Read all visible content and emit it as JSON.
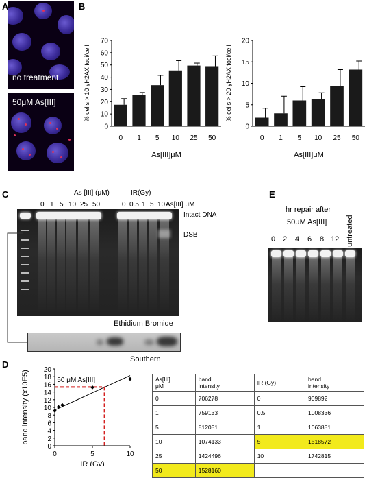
{
  "panels": {
    "A": "A",
    "B": "B",
    "C": "C",
    "D": "D",
    "E": "E"
  },
  "panelA": {
    "label_top": "no treatment",
    "label_bottom": "50μM As[III]"
  },
  "chart_data": [
    {
      "type": "bar",
      "categories": [
        "0",
        "1",
        "5",
        "10",
        "25",
        "50"
      ],
      "values": [
        17.5,
        25.5,
        33.5,
        45.5,
        49.5,
        49
      ],
      "errors": [
        5,
        2,
        8,
        8,
        2,
        8.5
      ],
      "xlabel": "As[III]μM",
      "ylabel": "% cells > 10 γH2AX foci/cell",
      "ylim": [
        0,
        70
      ],
      "yticks": [
        0,
        10,
        20,
        30,
        40,
        50,
        60,
        70
      ],
      "bar_color": "#1a1a1a",
      "grid": false
    },
    {
      "type": "bar",
      "categories": [
        "0",
        "1",
        "5",
        "10",
        "25",
        "50"
      ],
      "values": [
        2,
        3,
        6,
        6.3,
        9.3,
        13.2
      ],
      "errors": [
        2.2,
        4,
        3.2,
        1.5,
        3.9,
        2
      ],
      "xlabel": "As[III]μM",
      "ylabel": "% cells > 20 γH2AX foci/cell",
      "ylim": [
        0,
        20
      ],
      "yticks": [
        0,
        5,
        10,
        15,
        20
      ],
      "bar_color": "#1a1a1a",
      "grid": false
    },
    {
      "type": "scatter",
      "x": [
        0,
        0.5,
        1,
        5,
        10
      ],
      "y": [
        9.1,
        10.1,
        10.6,
        15.2,
        17.4
      ],
      "fit_line": {
        "x": [
          0,
          10
        ],
        "y": [
          9.3,
          18.3
        ]
      },
      "interpolation": {
        "y": 15.3,
        "x": 6.6,
        "color": "#d42020",
        "style": "dashed"
      },
      "annotation": "50 μM As[III]",
      "xlabel": "IR (Gy)",
      "ylabel": "band intensity (x10E5)",
      "xlim": [
        0,
        10
      ],
      "ylim": [
        0,
        20
      ],
      "xticks": [
        0,
        5,
        10
      ],
      "yticks": [
        0,
        2,
        4,
        6,
        8,
        10,
        12,
        14,
        16,
        18,
        20
      ],
      "grid": false
    },
    {
      "type": "table",
      "header": [
        "As[III] μM",
        "band intensity",
        "IR (Gy)",
        "band intensity"
      ],
      "rows": [
        [
          "0",
          "706278",
          "0",
          "909892"
        ],
        [
          "1",
          "759133",
          "0.5",
          "1008336"
        ],
        [
          "5",
          "812051",
          "1",
          "1063851"
        ],
        [
          "10",
          "1074133",
          "5",
          "1518572"
        ],
        [
          "25",
          "1424496",
          "10",
          "1742815"
        ],
        [
          "50",
          "1528160",
          "",
          ""
        ]
      ],
      "highlight_color": "#f2ea1c"
    }
  ],
  "panelC": {
    "as_header": "As [III] (μM)",
    "ir_header": "IR(Gy)",
    "lane_labels_as": [
      "0",
      "1",
      "5",
      "10",
      "25",
      "50"
    ],
    "lane_labels_ir": [
      "0",
      "0.5",
      "1",
      "5",
      "10"
    ],
    "unit_label": "As[III] μM",
    "intact_label": "Intact DNA",
    "dsb_label": "DSB",
    "gel_caption": "Ethidium Bromide",
    "southern_caption": "Southern"
  },
  "panelE": {
    "title_line1": "hr repair after",
    "title_line2": "50μM As[III]",
    "lane_labels": [
      "0",
      "2",
      "4",
      "6",
      "8",
      "12"
    ],
    "untreated_label": "untreated"
  },
  "panelD_table_header": {
    "c1": "As[III]",
    "c1b": "μM",
    "c2": "band",
    "c2b": "intensity",
    "c3": "IR (Gy)",
    "c4": "band",
    "c4b": "intensity"
  }
}
